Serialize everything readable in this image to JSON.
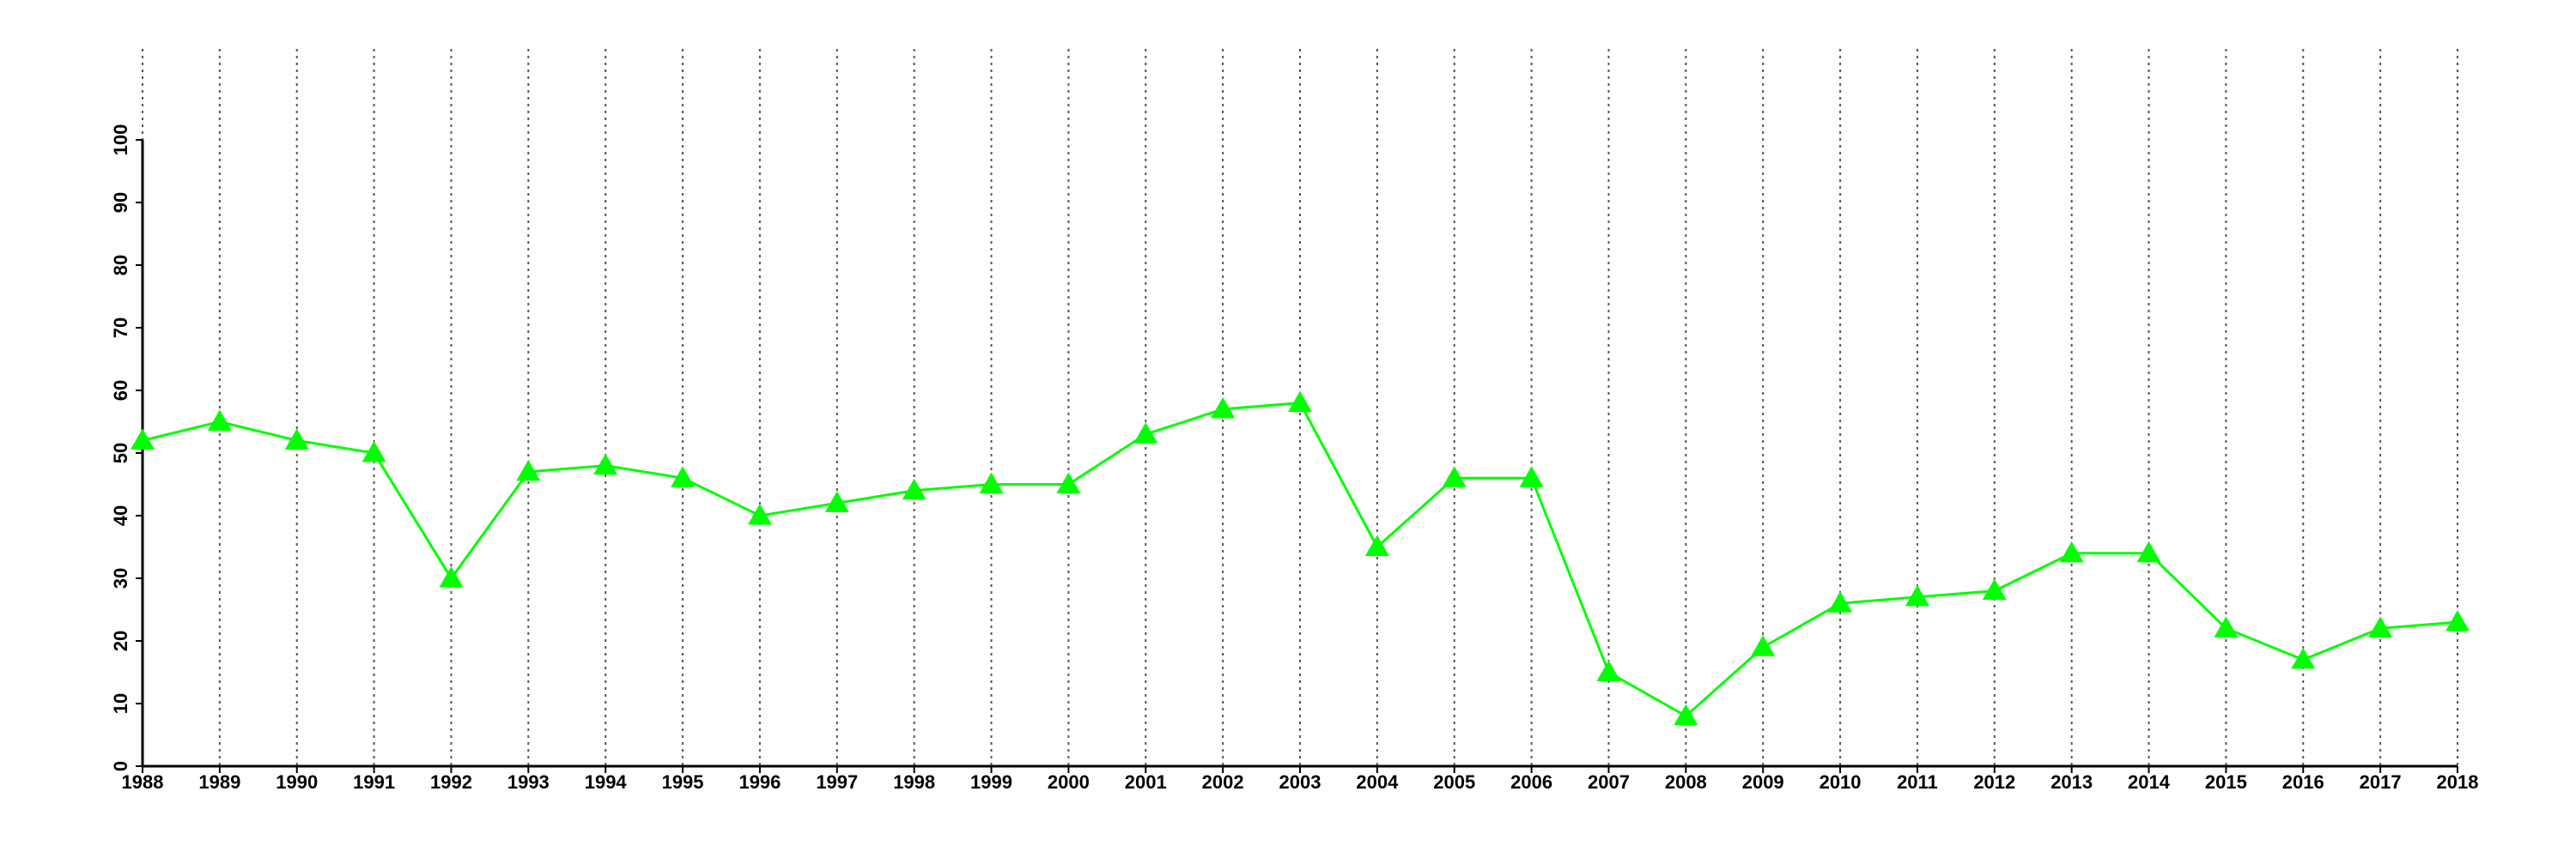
{
  "chart_data": {
    "type": "line",
    "categories": [
      "1988",
      "1989",
      "1990",
      "1991",
      "1992",
      "1993",
      "1994",
      "1995",
      "1996",
      "1997",
      "1998",
      "1999",
      "2000",
      "2001",
      "2002",
      "2003",
      "2004",
      "2005",
      "2006",
      "2007",
      "2008",
      "2009",
      "2010",
      "2011",
      "2012",
      "2013",
      "2014",
      "2015",
      "2016",
      "2017",
      "2018"
    ],
    "values": [
      52,
      55,
      52,
      50,
      30,
      47,
      48,
      46,
      40,
      42,
      44,
      45,
      45,
      53,
      57,
      58,
      35,
      46,
      46,
      15,
      8,
      19,
      26,
      27,
      28,
      34,
      34,
      22,
      17,
      22,
      23
    ],
    "color": "#00ff00",
    "marker": "triangle",
    "ylim": [
      0,
      100
    ],
    "yticks": [
      0,
      10,
      20,
      30,
      40,
      50,
      60,
      70,
      80,
      90,
      100
    ],
    "grid": "x"
  }
}
